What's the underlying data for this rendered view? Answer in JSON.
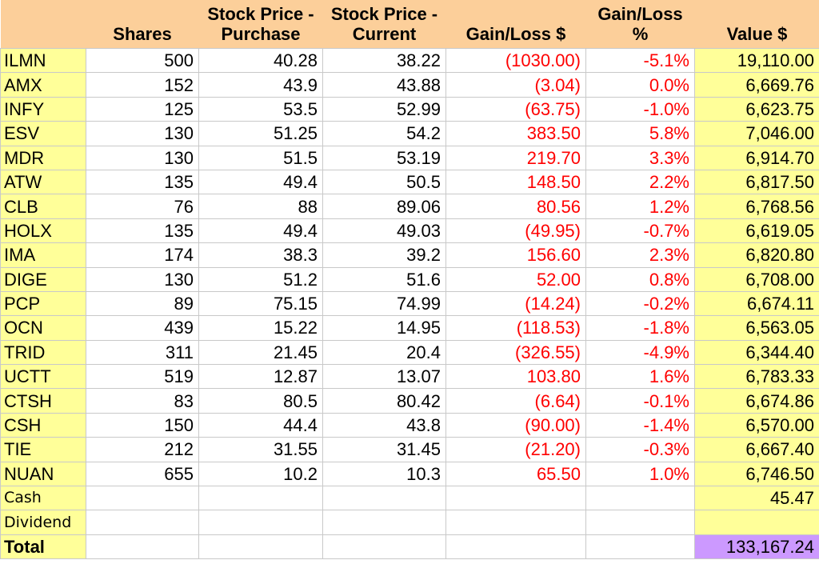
{
  "header": {
    "row1": {
      "purchase": "Stock Price -",
      "current": "Stock Price -",
      "gainloss_pct": "Gain/Loss"
    },
    "row2": {
      "shares": "Shares",
      "purchase": "Purchase",
      "current": "Current",
      "gainloss_usd": "Gain/Loss $",
      "gainloss_pct": "%",
      "value": "Value $"
    }
  },
  "rows": [
    {
      "symbol": "ILMN",
      "shares": "500",
      "purchase": "40.28",
      "current": "38.22",
      "gain": "(1030.00)",
      "pct": "-5.1%",
      "value": "19,110.00"
    },
    {
      "symbol": "AMX",
      "shares": "152",
      "purchase": "43.9",
      "current": "43.88",
      "gain": "(3.04)",
      "pct": "0.0%",
      "value": "6,669.76"
    },
    {
      "symbol": "INFY",
      "shares": "125",
      "purchase": "53.5",
      "current": "52.99",
      "gain": "(63.75)",
      "pct": "-1.0%",
      "value": "6,623.75"
    },
    {
      "symbol": "ESV",
      "shares": "130",
      "purchase": "51.25",
      "current": "54.2",
      "gain": "383.50",
      "pct": "5.8%",
      "value": "7,046.00"
    },
    {
      "symbol": "MDR",
      "shares": "130",
      "purchase": "51.5",
      "current": "53.19",
      "gain": "219.70",
      "pct": "3.3%",
      "value": "6,914.70"
    },
    {
      "symbol": "ATW",
      "shares": "135",
      "purchase": "49.4",
      "current": "50.5",
      "gain": "148.50",
      "pct": "2.2%",
      "value": "6,817.50"
    },
    {
      "symbol": "CLB",
      "shares": "76",
      "purchase": "88",
      "current": "89.06",
      "gain": "80.56",
      "pct": "1.2%",
      "value": "6,768.56"
    },
    {
      "symbol": "HOLX",
      "shares": "135",
      "purchase": "49.4",
      "current": "49.03",
      "gain": "(49.95)",
      "pct": "-0.7%",
      "value": "6,619.05"
    },
    {
      "symbol": "IMA",
      "shares": "174",
      "purchase": "38.3",
      "current": "39.2",
      "gain": "156.60",
      "pct": "2.3%",
      "value": "6,820.80"
    },
    {
      "symbol": "DIGE",
      "shares": "130",
      "purchase": "51.2",
      "current": "51.6",
      "gain": "52.00",
      "pct": "0.8%",
      "value": "6,708.00"
    },
    {
      "symbol": "PCP",
      "shares": "89",
      "purchase": "75.15",
      "current": "74.99",
      "gain": "(14.24)",
      "pct": "-0.2%",
      "value": "6,674.11"
    },
    {
      "symbol": "OCN",
      "shares": "439",
      "purchase": "15.22",
      "current": "14.95",
      "gain": "(118.53)",
      "pct": "-1.8%",
      "value": "6,563.05"
    },
    {
      "symbol": "TRID",
      "shares": "311",
      "purchase": "21.45",
      "current": "20.4",
      "gain": "(326.55)",
      "pct": "-4.9%",
      "value": "6,344.40"
    },
    {
      "symbol": "UCTT",
      "shares": "519",
      "purchase": "12.87",
      "current": "13.07",
      "gain": "103.80",
      "pct": "1.6%",
      "value": "6,783.33"
    },
    {
      "symbol": "CTSH",
      "shares": "83",
      "purchase": "80.5",
      "current": "80.42",
      "gain": "(6.64)",
      "pct": "-0.1%",
      "value": "6,674.86"
    },
    {
      "symbol": "CSH",
      "shares": "150",
      "purchase": "44.4",
      "current": "43.8",
      "gain": "(90.00)",
      "pct": "-1.4%",
      "value": "6,570.00"
    },
    {
      "symbol": "TIE",
      "shares": "212",
      "purchase": "31.55",
      "current": "31.45",
      "gain": "(21.20)",
      "pct": "-0.3%",
      "value": "6,667.40"
    },
    {
      "symbol": "NUAN",
      "shares": "655",
      "purchase": "10.2",
      "current": "10.3",
      "gain": "65.50",
      "pct": "1.0%",
      "value": "6,746.50"
    }
  ],
  "cash": {
    "label": "Cash",
    "value": "45.47"
  },
  "dividend": {
    "label": "Dividend",
    "value": ""
  },
  "total": {
    "label": "Total",
    "value": "133,167.24"
  },
  "colors": {
    "header_bg": "#fccf9a",
    "symbol_bg": "#ffff99",
    "value_bg": "#ffff99",
    "total_bg": "#cc99ff",
    "gain_text": "#ff0000"
  }
}
